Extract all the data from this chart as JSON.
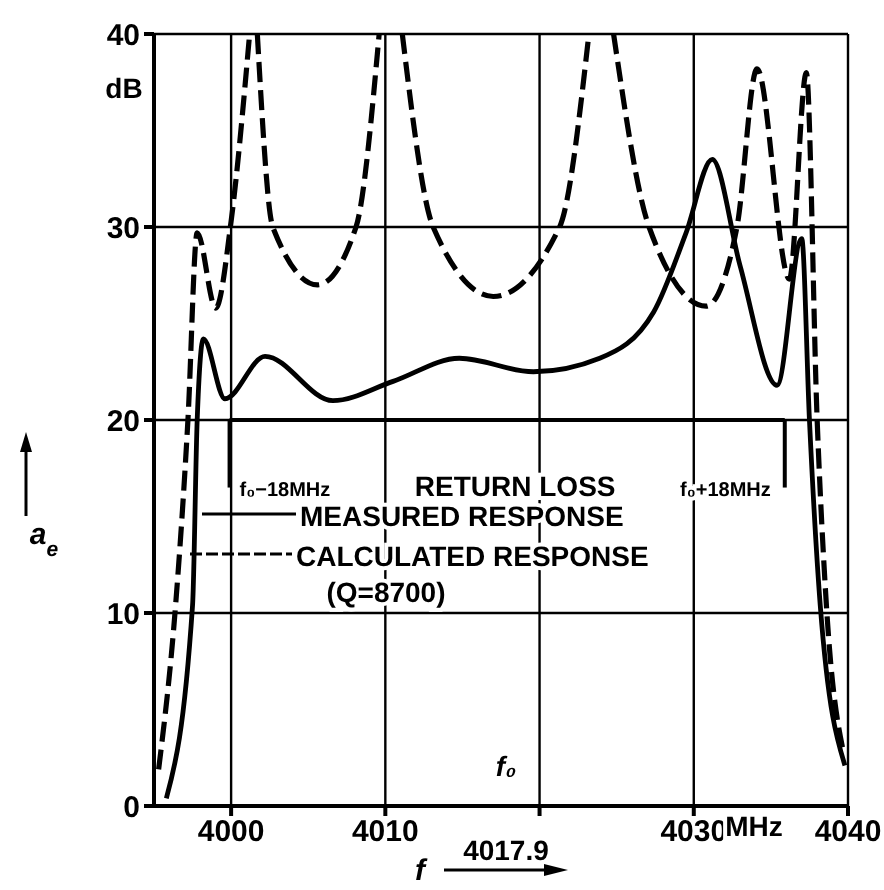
{
  "chart_data": {
    "type": "line",
    "xlabel": "f",
    "ylabel": "a$_{e}$",
    "xlim": [
      3995,
      4040
    ],
    "ylim": [
      0,
      40
    ],
    "xticks": [
      4000,
      4010,
      {
        "value": 4020,
        "label": null
      },
      4030,
      4040
    ],
    "yticks": [
      0,
      10,
      20,
      30,
      40
    ],
    "grid": true,
    "marker": "none",
    "series": [
      {
        "name": "MEASURED RESPONSE",
        "color": "#000000",
        "line_style": "solid",
        "x": [
          3995.8,
          3997.5,
          3997.8,
          3998.2,
          3999.6,
          4002.2,
          4006.6,
          4010.5,
          4014.8,
          4019.6,
          4023.9,
          4027.4,
          4029.5,
          4031.2,
          4033.0,
          4035.4,
          4037.0,
          4037.5,
          4038.2,
          4039.8
        ],
        "values": [
          0.4,
          10.4,
          20,
          24.2,
          21.1,
          23.3,
          21.0,
          22.0,
          23.2,
          22.5,
          23.2,
          25.6,
          29.7,
          33.5,
          28.0,
          21.8,
          29.4,
          20,
          10.4,
          2.1
        ]
      },
      {
        "name": "CALCULATED RESPONSE",
        "color": "#000000",
        "line_style": "dashed",
        "x": [
          3995.3,
          3996.4,
          3997.2,
          3997.8,
          3999.0,
          4000.0,
          4001.2,
          4001.4,
          4001.7,
          4002.7,
          4005.6,
          4008.1,
          4009.6,
          4010.3,
          4011.1,
          4013.1,
          4017.0,
          4021.3,
          4023.2,
          4024.0,
          4024.8,
          4027.1,
          4030.8,
          4032.8,
          4034.1,
          4036.2,
          4037.3,
          4038.0,
          4038.6,
          4039.7
        ],
        "values": [
          1.9,
          10.4,
          20,
          29.7,
          25.8,
          30.3,
          40,
          null,
          40,
          30,
          27.0,
          30,
          40,
          null,
          40,
          30,
          26.4,
          30,
          40,
          null,
          40,
          30,
          25.9,
          30,
          38.2,
          27.3,
          38.0,
          20,
          10.4,
          2.8
        ]
      }
    ],
    "ref_lines": [
      {
        "axis": "y",
        "value": 20,
        "label": "RETURN LOSS"
      },
      {
        "axis": "x",
        "value": 3999.9,
        "label": "f₀−18MHz"
      },
      {
        "axis": "x",
        "value": 4035.9,
        "label": "f₀+18MHz"
      }
    ],
    "legend": "left",
    "annotations": [
      "dB",
      "(Q=8700)",
      "MHz",
      "4017.9",
      "f₀"
    ]
  }
}
